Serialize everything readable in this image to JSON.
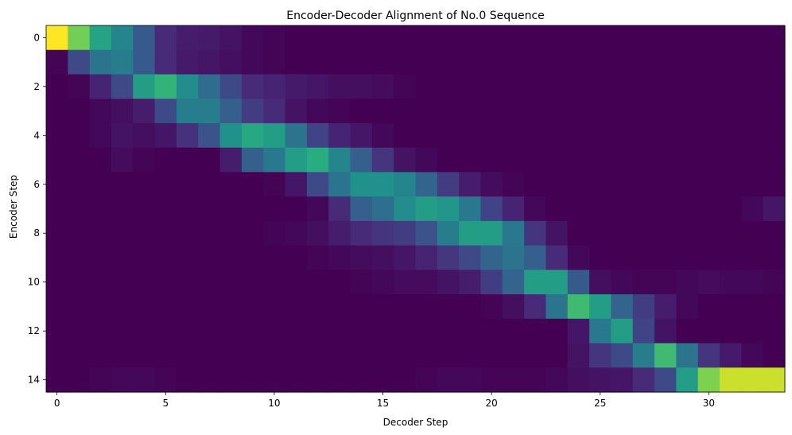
{
  "chart_data": {
    "type": "heatmap",
    "title": "Encoder-Decoder Alignment of No.0 Sequence",
    "xlabel": "Decoder Step",
    "ylabel": "Encoder Step",
    "n_cols": 34,
    "n_rows": 15,
    "x_ticks": [
      0,
      5,
      10,
      15,
      20,
      25,
      30
    ],
    "y_ticks": [
      0,
      2,
      4,
      6,
      8,
      10,
      12,
      14
    ],
    "colormap": "viridis",
    "value_range": [
      0,
      1
    ],
    "values": [
      [
        1.0,
        0.78,
        0.58,
        0.45,
        0.28,
        0.12,
        0.08,
        0.07,
        0.05,
        0.02,
        0.01,
        0,
        0,
        0,
        0,
        0,
        0,
        0,
        0,
        0,
        0,
        0,
        0,
        0,
        0,
        0,
        0,
        0,
        0,
        0,
        0,
        0,
        0,
        0
      ],
      [
        0.01,
        0.22,
        0.38,
        0.42,
        0.28,
        0.12,
        0.07,
        0.06,
        0.04,
        0.02,
        0.01,
        0,
        0,
        0,
        0,
        0,
        0,
        0,
        0,
        0,
        0,
        0,
        0,
        0,
        0,
        0,
        0,
        0,
        0,
        0,
        0,
        0,
        0,
        0
      ],
      [
        0,
        0.01,
        0.1,
        0.22,
        0.55,
        0.65,
        0.48,
        0.35,
        0.22,
        0.12,
        0.1,
        0.07,
        0.06,
        0.04,
        0.04,
        0.03,
        0.01,
        0,
        0,
        0,
        0,
        0,
        0,
        0,
        0,
        0,
        0,
        0,
        0,
        0,
        0,
        0,
        0,
        0
      ],
      [
        0,
        0,
        0.02,
        0.04,
        0.08,
        0.22,
        0.42,
        0.42,
        0.3,
        0.18,
        0.12,
        0.05,
        0.02,
        0.01,
        0,
        0,
        0,
        0,
        0,
        0,
        0,
        0,
        0,
        0,
        0,
        0,
        0,
        0,
        0,
        0,
        0,
        0,
        0,
        0
      ],
      [
        0,
        0,
        0.02,
        0.05,
        0.04,
        0.06,
        0.14,
        0.25,
        0.5,
        0.6,
        0.55,
        0.38,
        0.2,
        0.1,
        0.06,
        0.02,
        0,
        0,
        0,
        0,
        0,
        0,
        0,
        0,
        0,
        0,
        0,
        0,
        0,
        0,
        0,
        0,
        0,
        0
      ],
      [
        0,
        0,
        0,
        0.03,
        0.01,
        0,
        0,
        0,
        0.08,
        0.3,
        0.4,
        0.55,
        0.62,
        0.45,
        0.3,
        0.15,
        0.05,
        0.02,
        0,
        0,
        0,
        0,
        0,
        0,
        0,
        0,
        0,
        0,
        0,
        0,
        0,
        0,
        0,
        0
      ],
      [
        0,
        0,
        0,
        0,
        0,
        0,
        0,
        0,
        0,
        0,
        0.01,
        0.06,
        0.22,
        0.38,
        0.5,
        0.5,
        0.45,
        0.32,
        0.18,
        0.08,
        0.03,
        0.01,
        0,
        0,
        0,
        0,
        0,
        0,
        0,
        0,
        0,
        0,
        0,
        0
      ],
      [
        0,
        0,
        0,
        0,
        0,
        0,
        0,
        0,
        0,
        0,
        0,
        0,
        0.02,
        0.12,
        0.3,
        0.36,
        0.48,
        0.55,
        0.52,
        0.4,
        0.2,
        0.1,
        0.02,
        0,
        0,
        0,
        0,
        0,
        0,
        0,
        0,
        0,
        0.02,
        0.06
      ],
      [
        0,
        0,
        0,
        0,
        0,
        0,
        0,
        0,
        0,
        0,
        0.01,
        0.02,
        0.04,
        0.08,
        0.12,
        0.15,
        0.18,
        0.25,
        0.42,
        0.55,
        0.55,
        0.4,
        0.15,
        0.05,
        0,
        0,
        0,
        0,
        0,
        0,
        0,
        0,
        0,
        0
      ],
      [
        0,
        0,
        0,
        0,
        0,
        0,
        0,
        0,
        0,
        0,
        0,
        0,
        0.01,
        0.02,
        0.03,
        0.04,
        0.06,
        0.1,
        0.16,
        0.22,
        0.32,
        0.38,
        0.3,
        0.12,
        0.02,
        0,
        0,
        0,
        0,
        0,
        0,
        0,
        0,
        0
      ],
      [
        0,
        0,
        0,
        0,
        0,
        0,
        0,
        0,
        0,
        0,
        0,
        0,
        0,
        0,
        0.01,
        0.02,
        0.03,
        0.03,
        0.05,
        0.08,
        0.18,
        0.32,
        0.55,
        0.55,
        0.28,
        0.04,
        0.02,
        0.01,
        0.01,
        0.02,
        0.03,
        0.02,
        0.02,
        0.01
      ],
      [
        0,
        0,
        0,
        0,
        0,
        0,
        0,
        0,
        0,
        0,
        0,
        0,
        0,
        0,
        0,
        0,
        0,
        0,
        0,
        0,
        0.01,
        0.04,
        0.12,
        0.38,
        0.68,
        0.55,
        0.32,
        0.18,
        0.08,
        0.02,
        0,
        0,
        0,
        0
      ],
      [
        0,
        0,
        0,
        0,
        0,
        0,
        0,
        0,
        0,
        0,
        0,
        0,
        0,
        0,
        0,
        0,
        0,
        0,
        0,
        0,
        0,
        0,
        0,
        0,
        0.06,
        0.4,
        0.55,
        0.2,
        0.05,
        0,
        0,
        0,
        0,
        0
      ],
      [
        0,
        0,
        0,
        0,
        0,
        0,
        0,
        0,
        0,
        0,
        0,
        0,
        0,
        0,
        0,
        0,
        0,
        0,
        0,
        0,
        0,
        0,
        0,
        0,
        0.05,
        0.15,
        0.22,
        0.42,
        0.68,
        0.38,
        0.15,
        0.07,
        0.02,
        0
      ],
      [
        0,
        0,
        0.01,
        0.02,
        0.02,
        0.01,
        0,
        0,
        0,
        0,
        0,
        0,
        0,
        0,
        0,
        0,
        0,
        0.01,
        0.02,
        0.02,
        0.01,
        0.01,
        0.01,
        0.02,
        0.04,
        0.05,
        0.06,
        0.12,
        0.22,
        0.55,
        0.8,
        0.92,
        0.92,
        0.92
      ]
    ]
  }
}
